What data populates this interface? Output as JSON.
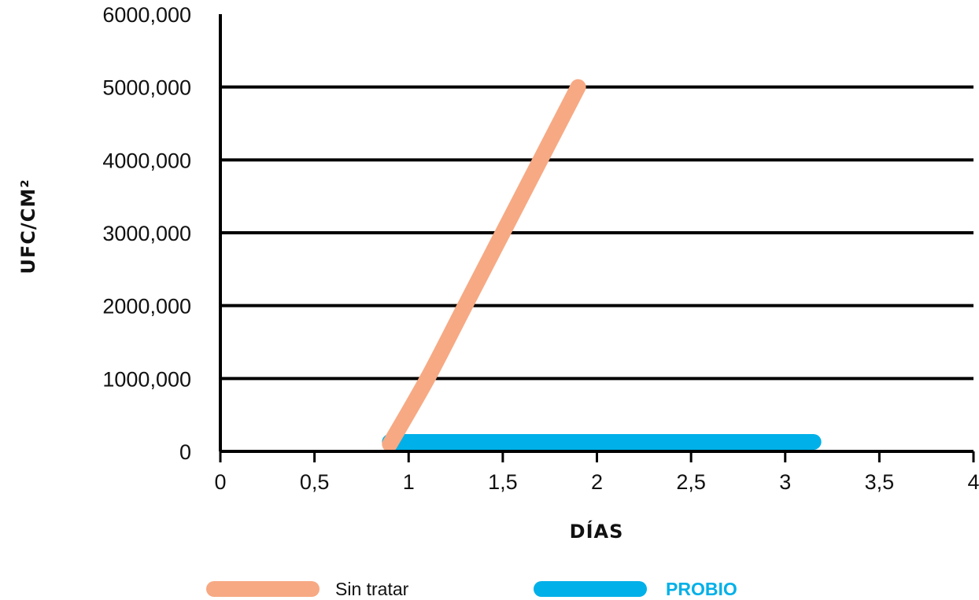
{
  "chart_data": {
    "type": "line",
    "title": "",
    "xlabel": "DÍAS",
    "ylabel": "UFC/CM²",
    "xlim": [
      0,
      4
    ],
    "ylim": [
      0,
      6000000
    ],
    "x_ticks": [
      0,
      0.5,
      1,
      1.5,
      2,
      2.5,
      3,
      3.5,
      4
    ],
    "x_tick_labels": [
      "0",
      "0,5",
      "1",
      "1,5",
      "2",
      "2,5",
      "3",
      "3,5",
      "4"
    ],
    "y_ticks": [
      0,
      1000000,
      2000000,
      3000000,
      4000000,
      5000000,
      6000000
    ],
    "y_tick_labels": [
      "0",
      "1000,000",
      "2000,000",
      "3000,000",
      "4000,000",
      "5000,000",
      "6000,000"
    ],
    "grid": "horizontal",
    "legend_position": "bottom",
    "series": [
      {
        "name": "Sin tratar",
        "color": "#F7A983",
        "x": [
          0.9,
          1.1,
          1.3,
          1.5,
          1.7,
          1.9
        ],
        "y": [
          100000,
          1000000,
          2000000,
          3000000,
          4000000,
          5000000
        ]
      },
      {
        "name": "PROBIO",
        "color": "#00B0E8",
        "x": [
          0.9,
          3.15
        ],
        "y": [
          130000,
          130000
        ]
      }
    ]
  }
}
